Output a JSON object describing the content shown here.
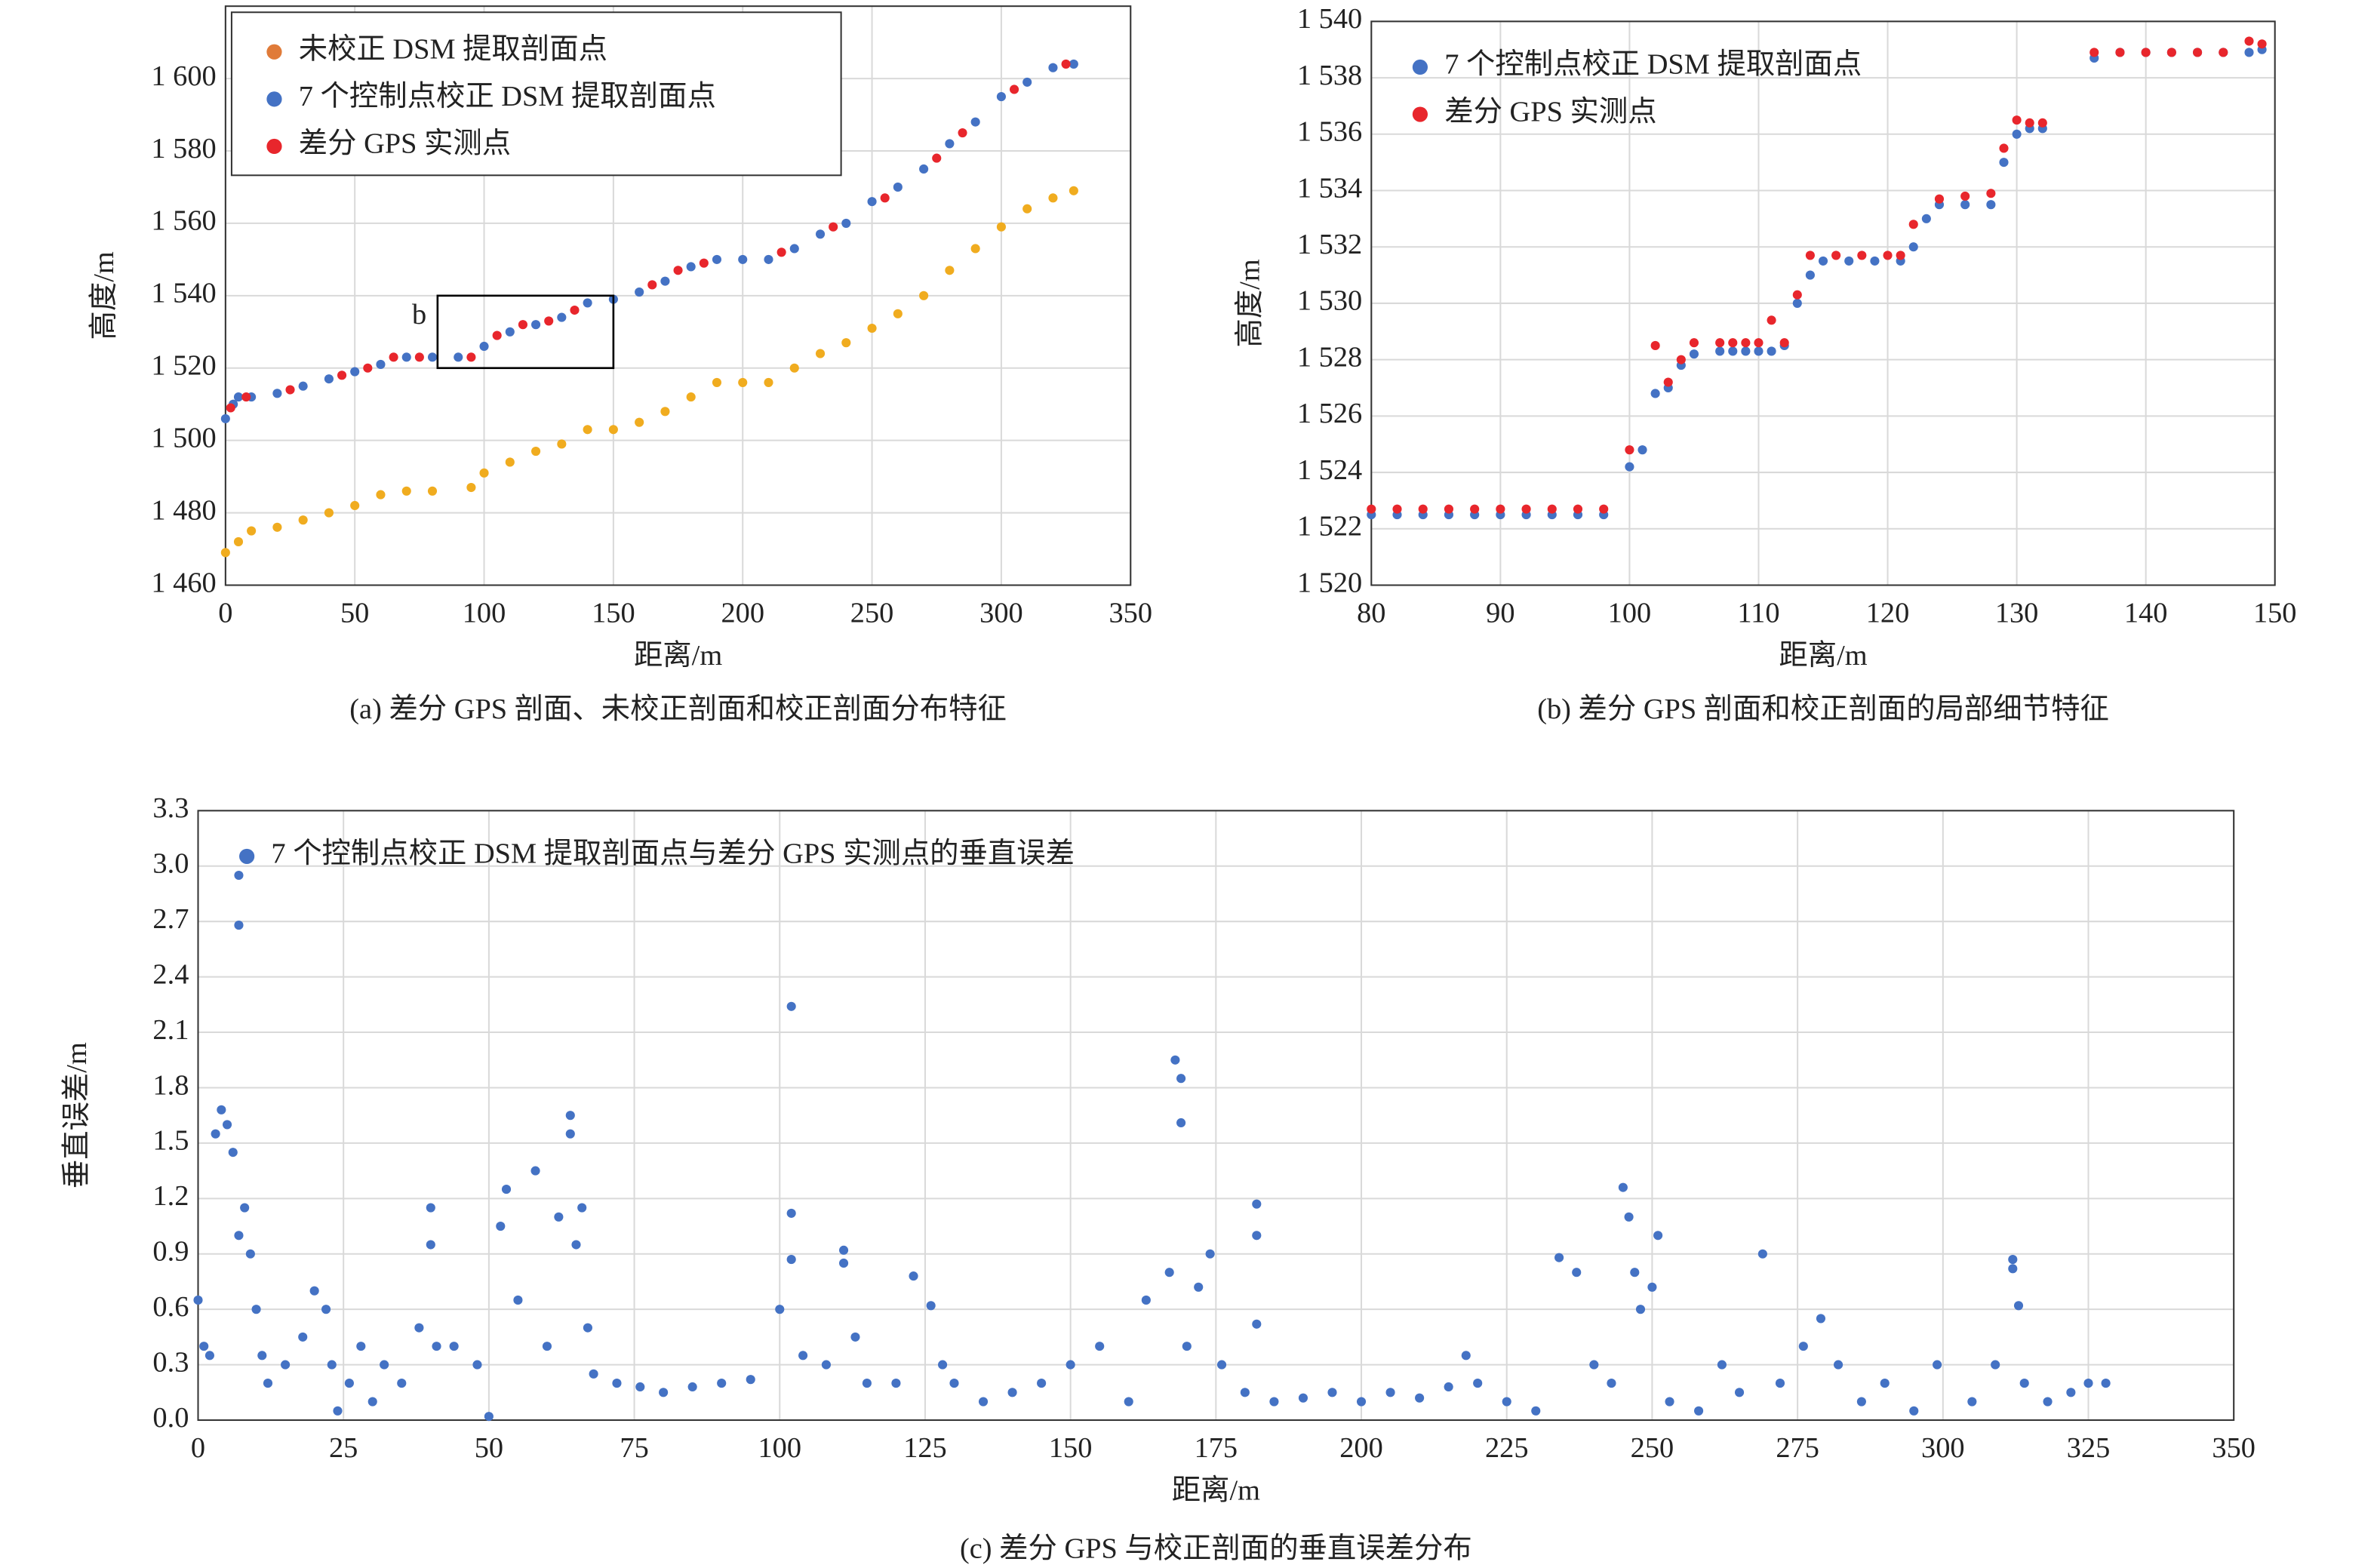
{
  "chart_data": [
    {
      "type": "scatter",
      "caption": "(a) 差分 GPS 剖面、未校正剖面和校正剖面分布特征",
      "xlabel": "距离/m",
      "ylabel": "高度/m",
      "xlim": [
        0,
        350
      ],
      "xticks": [
        0,
        50,
        100,
        150,
        200,
        250,
        300,
        350
      ],
      "ylim": [
        1460,
        1620
      ],
      "yticks": [
        {
          "value": 1460,
          "label": "1 460"
        },
        {
          "value": 1480,
          "label": "1 480"
        },
        {
          "value": 1500,
          "label": "1 500"
        },
        {
          "value": 1520,
          "label": "1 520"
        },
        {
          "value": 1540,
          "label": "1 540"
        },
        {
          "value": 1560,
          "label": "1 560"
        },
        {
          "value": 1580,
          "label": "1 580"
        },
        {
          "value": 1600,
          "label": "1 600"
        }
      ],
      "grid": true,
      "legend": "upper left",
      "legend_box": true,
      "annotation": {
        "text": "b",
        "x": [
          82,
          150
        ],
        "y": [
          1520,
          1540
        ]
      },
      "series": [
        {
          "name": "未校正 DSM 提取剖面点",
          "color": "#f0ac1f",
          "legend_color": "#e07b39",
          "x": [
            0,
            5,
            10,
            20,
            30,
            40,
            50,
            60,
            70,
            80,
            95,
            100,
            110,
            120,
            130,
            140,
            150,
            160,
            170,
            180,
            190,
            200,
            210,
            220,
            230,
            240,
            250,
            260,
            270,
            280,
            290,
            300,
            310,
            320,
            328
          ],
          "values": [
            1469,
            1472,
            1475,
            1476,
            1478,
            1480,
            1482,
            1485,
            1486,
            1486,
            1487,
            1491,
            1494,
            1497,
            1499,
            1503,
            1503,
            1505,
            1508,
            1512,
            1516,
            1516,
            1516,
            1520,
            1524,
            1527,
            1531,
            1535,
            1540,
            1547,
            1553,
            1559,
            1564,
            1567,
            1569
          ]
        },
        {
          "name": "7 个控制点校正 DSM 提取剖面点",
          "color": "#4472c4",
          "x": [
            0,
            3,
            5,
            10,
            20,
            30,
            40,
            50,
            60,
            70,
            80,
            90,
            100,
            110,
            120,
            130,
            140,
            150,
            160,
            170,
            180,
            190,
            200,
            210,
            220,
            230,
            240,
            250,
            260,
            270,
            280,
            290,
            300,
            310,
            320,
            328
          ],
          "values": [
            1506,
            1510,
            1512,
            1512,
            1513,
            1515,
            1517,
            1519,
            1521,
            1523,
            1523,
            1523,
            1526,
            1530,
            1532,
            1534,
            1538,
            1539,
            1541,
            1544,
            1548,
            1550,
            1550,
            1550,
            1553,
            1557,
            1560,
            1566,
            1570,
            1575,
            1582,
            1588,
            1595,
            1599,
            1603,
            1604
          ]
        },
        {
          "name": "差分 GPS 实测点",
          "color": "#e8262c",
          "x": [
            2,
            8,
            25,
            45,
            55,
            65,
            75,
            95,
            105,
            115,
            125,
            135,
            165,
            175,
            185,
            215,
            235,
            255,
            275,
            285,
            305,
            325
          ],
          "values": [
            1509,
            1512,
            1514,
            1518,
            1520,
            1523,
            1523,
            1523,
            1529,
            1532,
            1533,
            1536,
            1543,
            1547,
            1549,
            1552,
            1559,
            1567,
            1578,
            1585,
            1597,
            1604
          ]
        }
      ]
    },
    {
      "type": "scatter",
      "caption": "(b) 差分 GPS 剖面和校正剖面的局部细节特征",
      "xlabel": "距离/m",
      "ylabel": "高度/m",
      "xlim": [
        80,
        150
      ],
      "xticks": [
        80,
        90,
        100,
        110,
        120,
        130,
        140,
        150
      ],
      "ylim": [
        1520,
        1540
      ],
      "yticks": [
        {
          "value": 1520,
          "label": "1 520"
        },
        {
          "value": 1522,
          "label": "1 522"
        },
        {
          "value": 1524,
          "label": "1 524"
        },
        {
          "value": 1526,
          "label": "1 526"
        },
        {
          "value": 1528,
          "label": "1 528"
        },
        {
          "value": 1530,
          "label": "1 530"
        },
        {
          "value": 1532,
          "label": "1 532"
        },
        {
          "value": 1534,
          "label": "1 534"
        },
        {
          "value": 1536,
          "label": "1 536"
        },
        {
          "value": 1538,
          "label": "1 538"
        },
        {
          "value": 1540,
          "label": "1 540"
        }
      ],
      "grid": true,
      "legend": "upper left",
      "legend_box": false,
      "series": [
        {
          "name": "7 个控制点校正 DSM 提取剖面点",
          "color": "#4472c4",
          "x": [
            80,
            82,
            84,
            86,
            88,
            90,
            92,
            94,
            96,
            98,
            100,
            101,
            102,
            103,
            104,
            105,
            107,
            108,
            109,
            110,
            111,
            112,
            113,
            114,
            115,
            117,
            119,
            121,
            122,
            123,
            124,
            126,
            128,
            129,
            130,
            131,
            132,
            136,
            138,
            140,
            142,
            144,
            146,
            148,
            149
          ],
          "values": [
            1522.5,
            1522.5,
            1522.5,
            1522.5,
            1522.5,
            1522.5,
            1522.5,
            1522.5,
            1522.5,
            1522.5,
            1524.2,
            1524.8,
            1526.8,
            1527,
            1527.8,
            1528.2,
            1528.3,
            1528.3,
            1528.3,
            1528.3,
            1528.3,
            1528.5,
            1530,
            1531,
            1531.5,
            1531.5,
            1531.5,
            1531.5,
            1532,
            1533,
            1533.5,
            1533.5,
            1533.5,
            1535,
            1536,
            1536.2,
            1536.2,
            1538.7,
            1538.9,
            1538.9,
            1538.9,
            1538.9,
            1538.9,
            1538.9,
            1539
          ]
        },
        {
          "name": "差分 GPS 实测点",
          "color": "#e8262c",
          "x": [
            80,
            82,
            84,
            86,
            88,
            90,
            92,
            94,
            96,
            98,
            100,
            102,
            103,
            104,
            105,
            107,
            108,
            109,
            110,
            111,
            112,
            113,
            114,
            116,
            118,
            120,
            121,
            122,
            124,
            126,
            128,
            129,
            130,
            131,
            132,
            136,
            138,
            140,
            142,
            144,
            146,
            148,
            149
          ],
          "values": [
            1522.7,
            1522.7,
            1522.7,
            1522.7,
            1522.7,
            1522.7,
            1522.7,
            1522.7,
            1522.7,
            1522.7,
            1524.8,
            1528.5,
            1527.2,
            1528,
            1528.6,
            1528.6,
            1528.6,
            1528.6,
            1528.6,
            1529.4,
            1528.6,
            1530.3,
            1531.7,
            1531.7,
            1531.7,
            1531.7,
            1531.7,
            1532.8,
            1533.7,
            1533.8,
            1533.9,
            1535.5,
            1536.5,
            1536.4,
            1536.4,
            1538.9,
            1538.9,
            1538.9,
            1538.9,
            1538.9,
            1538.9,
            1539.3,
            1539.2
          ]
        }
      ]
    },
    {
      "type": "scatter",
      "caption": "(c) 差分 GPS 与校正剖面的垂直误差分布",
      "xlabel": "距离/m",
      "ylabel": "垂直误差/m",
      "xlim": [
        0,
        350
      ],
      "xticks": [
        0,
        25,
        50,
        75,
        100,
        125,
        150,
        175,
        200,
        225,
        250,
        275,
        300,
        325,
        350
      ],
      "ylim": [
        0,
        3.3
      ],
      "yticks": [
        {
          "value": 0,
          "label": "0.0"
        },
        0.3,
        0.6,
        0.9,
        1.2,
        1.5,
        1.8,
        2.1,
        2.4,
        2.7,
        {
          "value": 3,
          "label": "3.0"
        },
        3.3
      ],
      "grid": true,
      "legend": "upper left",
      "legend_box": false,
      "series": [
        {
          "name": "7 个控制点校正 DSM 提取剖面点与差分 GPS 实测点的垂直误差",
          "color": "#4472c4",
          "x": [
            0,
            1,
            2,
            3,
            4,
            5,
            6,
            7,
            7,
            7,
            8,
            9,
            10,
            11,
            12,
            15,
            18,
            20,
            22,
            23,
            24,
            26,
            28,
            30,
            32,
            35,
            38,
            40,
            40,
            41,
            44,
            48,
            50,
            52,
            53,
            55,
            58,
            60,
            62,
            64,
            64,
            65,
            66,
            67,
            68,
            72,
            76,
            80,
            85,
            90,
            95,
            100,
            102,
            102,
            102,
            104,
            108,
            111,
            111,
            113,
            115,
            120,
            123,
            126,
            128,
            130,
            135,
            140,
            145,
            150,
            155,
            160,
            163,
            167,
            168,
            169,
            169,
            170,
            172,
            174,
            176,
            180,
            182,
            182,
            182,
            185,
            190,
            195,
            200,
            205,
            210,
            215,
            218,
            220,
            225,
            230,
            234,
            237,
            240,
            243,
            245,
            246,
            247,
            248,
            250,
            251,
            253,
            258,
            262,
            265,
            269,
            272,
            276,
            279,
            282,
            286,
            290,
            295,
            299,
            305,
            309,
            312,
            312,
            313,
            314,
            318,
            322,
            325,
            328
          ],
          "values": [
            0.65,
            0.4,
            0.35,
            1.55,
            1.68,
            1.6,
            1.45,
            2.95,
            2.68,
            1.0,
            1.15,
            0.9,
            0.6,
            0.35,
            0.2,
            0.3,
            0.45,
            0.7,
            0.6,
            0.3,
            0.05,
            0.2,
            0.4,
            0.1,
            0.3,
            0.2,
            0.5,
            1.15,
            0.95,
            0.4,
            0.4,
            0.3,
            0.02,
            1.05,
            1.25,
            0.65,
            1.35,
            0.4,
            1.1,
            1.65,
            1.55,
            0.95,
            1.15,
            0.5,
            0.25,
            0.2,
            0.18,
            0.15,
            0.18,
            0.2,
            0.22,
            0.6,
            2.24,
            1.12,
            0.87,
            0.35,
            0.3,
            0.92,
            0.85,
            0.45,
            0.2,
            0.2,
            0.78,
            0.62,
            0.3,
            0.2,
            0.1,
            0.15,
            0.2,
            0.3,
            0.4,
            0.1,
            0.65,
            0.8,
            1.95,
            1.85,
            1.61,
            0.4,
            0.72,
            0.9,
            0.3,
            0.15,
            1.17,
            1.0,
            0.52,
            0.1,
            0.12,
            0.15,
            0.1,
            0.15,
            0.12,
            0.18,
            0.35,
            0.2,
            0.1,
            0.05,
            0.88,
            0.8,
            0.3,
            0.2,
            1.26,
            1.1,
            0.8,
            0.6,
            0.72,
            1.0,
            0.1,
            0.05,
            0.3,
            0.15,
            0.9,
            0.2,
            0.4,
            0.55,
            0.3,
            0.1,
            0.2,
            0.05,
            0.3,
            0.1,
            0.3,
            0.87,
            0.82,
            0.62,
            0.2,
            0.1,
            0.15,
            0.2,
            0.2
          ]
        }
      ]
    }
  ]
}
